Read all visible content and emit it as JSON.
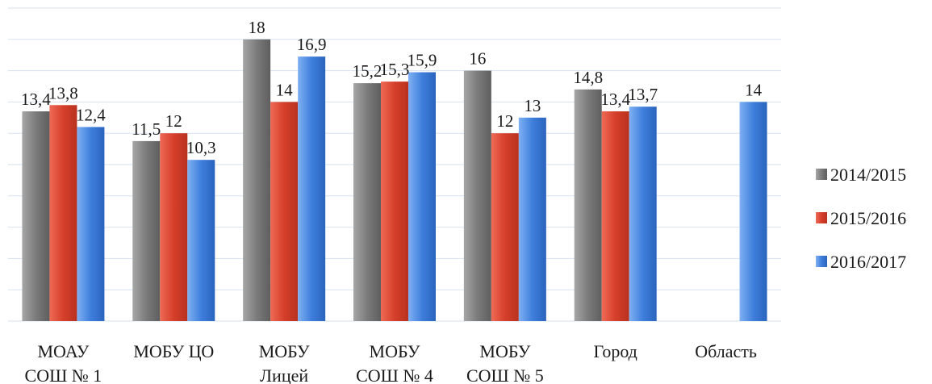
{
  "chart_data": {
    "type": "bar",
    "categories": [
      [
        "МОАУ",
        "СОШ № 1"
      ],
      [
        "МОБУ ЦО"
      ],
      [
        "МОБУ",
        "Лицей"
      ],
      [
        "МОБУ",
        "СОШ № 4"
      ],
      [
        "МОБУ",
        "СОШ № 5"
      ],
      [
        "Город"
      ],
      [
        "Область"
      ]
    ],
    "series": [
      {
        "name": "2014/2015",
        "color": "#808080",
        "values": [
          13.4,
          11.5,
          18,
          15.2,
          16,
          14.8,
          null
        ],
        "labels": [
          "13,4",
          "11,5",
          "18",
          "15,2",
          "16",
          "14,8",
          null
        ]
      },
      {
        "name": "2015/2016",
        "color": "#d9412e",
        "values": [
          13.8,
          12,
          14,
          15.3,
          12,
          13.4,
          null
        ],
        "labels": [
          "13,8",
          "12",
          "14",
          "15,3",
          "12",
          "13,4",
          null
        ]
      },
      {
        "name": "2016/2017",
        "color": "#3d7ad6",
        "values": [
          12.4,
          10.3,
          16.9,
          15.9,
          13,
          13.7,
          14
        ],
        "labels": [
          "12,4",
          "10,3",
          "16,9",
          "15,9",
          "13",
          "13,7",
          "14"
        ]
      }
    ],
    "ylim": [
      0,
      20
    ],
    "grid": true,
    "legend_position": "right"
  }
}
